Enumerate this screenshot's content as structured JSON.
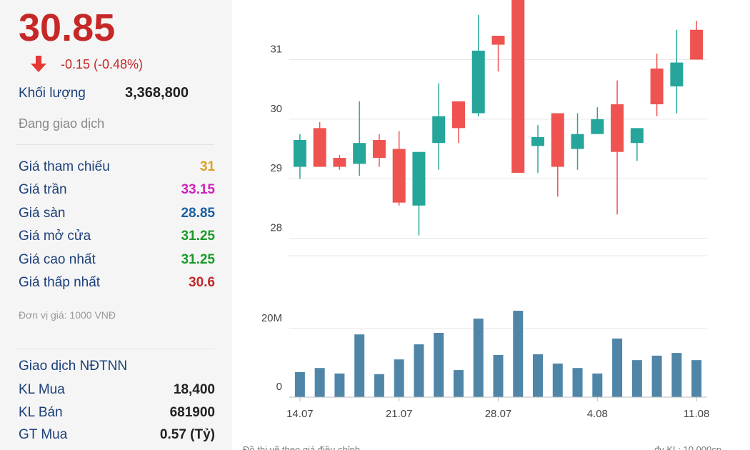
{
  "panel": {
    "price": "30.85",
    "change": "-0.15 (-0.48%)",
    "volume_label": "Khối lượng",
    "volume": "3,368,800",
    "status": "Đang giao dịch",
    "prices": [
      {
        "label": "Giá tham chiếu",
        "value": "31"
      },
      {
        "label": "Giá trần",
        "value": "33.15"
      },
      {
        "label": "Giá sàn",
        "value": "28.85"
      },
      {
        "label": "Giá mở cửa",
        "value": "31.25"
      },
      {
        "label": "Giá cao nhất",
        "value": "31.25"
      },
      {
        "label": "Giá thấp nhất",
        "value": "30.6"
      }
    ],
    "unit_note": "Đơn vị giá: 1000 VNĐ",
    "foreign": {
      "title": "Giao dịch NĐTNN",
      "rows": [
        {
          "label": "KL Mua",
          "value": "18,400"
        },
        {
          "label": "KL Bán",
          "value": "681900"
        },
        {
          "label": "GT Mua",
          "value": "0.57 (Tỷ)"
        }
      ]
    }
  },
  "chart_data": [
    {
      "type": "candlestick",
      "up_color": "#26a69a",
      "down_color": "#ef5350",
      "open": [
        29.2,
        29.85,
        29.35,
        29.25,
        29.65,
        29.5,
        28.55,
        29.6,
        30.3,
        30.1,
        31.4,
        32,
        29.55,
        30.1,
        29.5,
        29.75,
        30.25,
        29.6,
        30.85,
        30.55,
        31.5
      ],
      "high": [
        29.75,
        29.95,
        29.4,
        30.3,
        29.75,
        29.8,
        29.45,
        30.6,
        30.3,
        31.75,
        31.4,
        32,
        29.9,
        30.1,
        30.1,
        30.2,
        30.65,
        29.85,
        31.1,
        31.5,
        31.65
      ],
      "low": [
        29.0,
        29.2,
        29.15,
        29.05,
        29.2,
        28.55,
        28.05,
        29.15,
        29.6,
        30.05,
        30.8,
        29.1,
        29.1,
        28.7,
        29.15,
        29.75,
        28.4,
        29.3,
        30.05,
        30.1,
        31.0
      ],
      "close": [
        29.65,
        29.2,
        29.2,
        29.6,
        29.35,
        28.6,
        29.45,
        30.05,
        29.85,
        31.15,
        31.25,
        29.1,
        29.7,
        29.2,
        29.75,
        30.0,
        29.45,
        29.85,
        30.25,
        30.95,
        31.0
      ],
      "ylim": [
        27.9,
        32
      ],
      "yticks": [
        28,
        29,
        30,
        31
      ],
      "grid": true
    },
    {
      "type": "bar",
      "categories": [
        "14.07",
        null,
        null,
        null,
        null,
        "21.07",
        null,
        null,
        null,
        null,
        "28.07",
        null,
        null,
        null,
        null,
        "4.08",
        null,
        null,
        null,
        null,
        "11.08"
      ],
      "values": [
        7.3,
        8.5,
        6.9,
        18.3,
        6.7,
        11,
        15.4,
        18.75,
        7.9,
        22.9,
        12.3,
        25.2,
        12.5,
        9.8,
        8.5,
        6.9,
        17.1,
        10.8,
        12.1,
        12.9,
        10.8
      ],
      "color": "#4f86a8",
      "ylim": [
        0,
        41.25
      ],
      "yticks": [
        0,
        {
          "value": 20,
          "label": "20M"
        }
      ],
      "grid": true
    }
  ],
  "footer": {
    "note": "Đồ thị vẽ theo giá điều chỉnh",
    "volume_unit": "đv KL: 10,000cp"
  }
}
